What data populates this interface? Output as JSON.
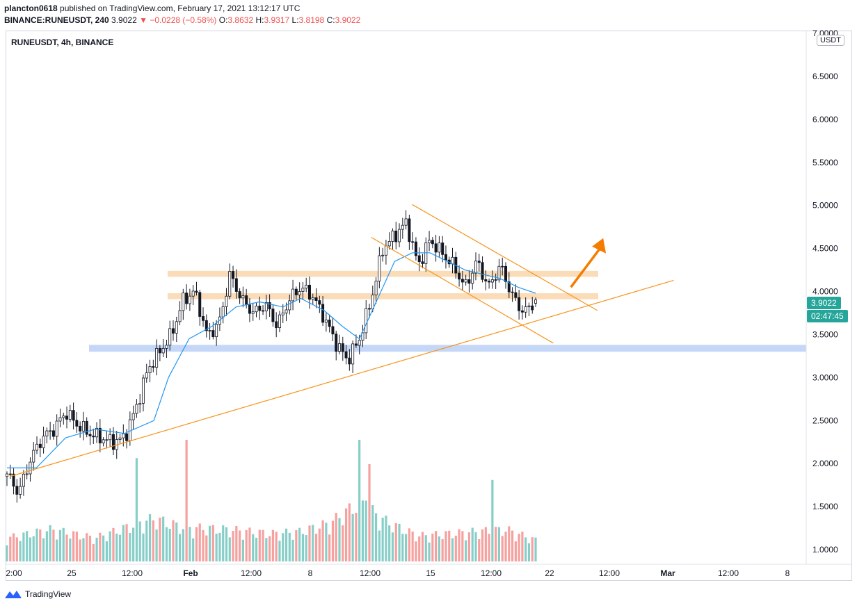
{
  "header": {
    "user": "plancton0618",
    "published": "published on TradingView.com, February 17, 2021 13:12:17 UTC",
    "symbol_interval": "BINANCE:RUNEUSDT, 240",
    "last": "3.9022",
    "change": "−0.0228 (−0.58%)",
    "o_label": "O:",
    "o": "3.8632",
    "h_label": "H:",
    "h": "3.9317",
    "l_label": "L:",
    "l": "3.8198",
    "c_label": "C:",
    "c": "3.9022"
  },
  "legend_title": "RUNEUSDT, 4h, BINANCE",
  "unit": "USDT",
  "price_badge": "3.9022",
  "countdown_badge": "02:47:45",
  "footer": {
    "brand": "TradingView"
  },
  "colors": {
    "up": "#26a69a",
    "down": "#ef5350",
    "candle": "#131722",
    "ma": "#2196f3",
    "trend": "#f7931a",
    "zone_orange": "#f9c48b",
    "zone_blue": "#9fbdf2",
    "arrow": "#f57c00"
  },
  "chart_data": {
    "type": "candlestick",
    "title": "RUNEUSDT, 4h, BINANCE",
    "y_axis": {
      "min": 0.9,
      "max": 7.0,
      "scale": "linear",
      "position": "right",
      "ticks": [
        "7.0000",
        "6.5000",
        "6.0000",
        "5.5000",
        "5.0000",
        "4.5000",
        "4.0000",
        "3.5000",
        "3.0000",
        "2.5000",
        "2.0000",
        "1.5000",
        "1.0000"
      ]
    },
    "x_axis": {
      "ticks": [
        "2:00",
        "25",
        "12:00",
        "Feb",
        "12:00",
        "8",
        "12:00",
        "15",
        "12:00",
        "22",
        "12:00",
        "Mar",
        "12:00",
        "8"
      ],
      "bold_ticks": [
        "Feb",
        "Mar"
      ]
    },
    "candles_per_day": 6,
    "num_candles": 160,
    "price_path": [
      [
        0,
        1.88
      ],
      [
        4,
        1.66
      ],
      [
        8,
        2.05
      ],
      [
        12,
        2.3
      ],
      [
        16,
        2.4
      ],
      [
        20,
        2.6
      ],
      [
        24,
        2.45
      ],
      [
        28,
        2.35
      ],
      [
        32,
        2.3
      ],
      [
        36,
        2.25
      ],
      [
        40,
        2.3
      ],
      [
        44,
        2.65
      ],
      [
        48,
        3.1
      ],
      [
        52,
        3.3
      ],
      [
        56,
        3.5
      ],
      [
        60,
        3.9
      ],
      [
        64,
        4.0
      ],
      [
        68,
        3.5
      ],
      [
        72,
        3.6
      ],
      [
        76,
        4.2
      ],
      [
        80,
        3.9
      ],
      [
        84,
        3.75
      ],
      [
        88,
        3.85
      ],
      [
        92,
        3.6
      ],
      [
        96,
        3.9
      ],
      [
        100,
        4.05
      ],
      [
        104,
        3.95
      ],
      [
        108,
        3.7
      ],
      [
        112,
        3.4
      ],
      [
        116,
        3.2
      ],
      [
        120,
        3.45
      ],
      [
        124,
        3.9
      ],
      [
        128,
        4.5
      ],
      [
        132,
        4.65
      ],
      [
        136,
        4.8
      ],
      [
        140,
        4.3
      ],
      [
        144,
        4.6
      ],
      [
        148,
        4.45
      ],
      [
        152,
        4.3
      ],
      [
        156,
        4.05
      ],
      [
        160,
        4.35
      ],
      [
        164,
        4.05
      ],
      [
        168,
        4.3
      ],
      [
        172,
        3.95
      ],
      [
        176,
        3.75
      ],
      [
        180,
        3.9
      ]
    ],
    "volume_shape": [
      [
        0,
        0.22
      ],
      [
        15,
        0.3
      ],
      [
        30,
        0.22
      ],
      [
        44,
        0.35
      ],
      [
        50,
        0.4
      ],
      [
        60,
        0.32
      ],
      [
        75,
        0.3
      ],
      [
        90,
        0.26
      ],
      [
        100,
        0.28
      ],
      [
        110,
        0.36
      ],
      [
        120,
        0.55
      ],
      [
        130,
        0.36
      ],
      [
        140,
        0.24
      ],
      [
        150,
        0.26
      ],
      [
        160,
        0.28
      ],
      [
        170,
        0.3
      ],
      [
        180,
        0.2
      ]
    ],
    "volume_spikes": [
      [
        44,
        0.85
      ],
      [
        61,
        1.0
      ],
      [
        120,
        1.0
      ],
      [
        122,
        0.5
      ],
      [
        123,
        0.8
      ],
      [
        165,
        0.67
      ]
    ],
    "last_candle": {
      "open": 3.8632,
      "high": 3.9317,
      "low": 3.8198,
      "close": 3.9022
    },
    "moving_average": [
      [
        0,
        1.95
      ],
      [
        10,
        1.95
      ],
      [
        20,
        2.3
      ],
      [
        30,
        2.4
      ],
      [
        40,
        2.35
      ],
      [
        50,
        2.5
      ],
      [
        55,
        3.0
      ],
      [
        62,
        3.45
      ],
      [
        70,
        3.6
      ],
      [
        78,
        3.82
      ],
      [
        86,
        3.88
      ],
      [
        94,
        3.82
      ],
      [
        100,
        3.92
      ],
      [
        108,
        3.78
      ],
      [
        114,
        3.6
      ],
      [
        120,
        3.45
      ],
      [
        126,
        3.9
      ],
      [
        132,
        4.35
      ],
      [
        138,
        4.45
      ],
      [
        144,
        4.45
      ],
      [
        150,
        4.35
      ],
      [
        156,
        4.25
      ],
      [
        162,
        4.2
      ],
      [
        168,
        4.15
      ],
      [
        174,
        4.05
      ],
      [
        180,
        3.98
      ]
    ],
    "drawings": {
      "rising_trendline": [
        [
          1,
          1.85
        ],
        [
          227,
          4.13
        ]
      ],
      "channel_upper": [
        [
          138,
          5.01
        ],
        [
          201,
          3.78
        ]
      ],
      "channel_lower": [
        [
          124,
          4.63
        ],
        [
          186,
          3.4
        ]
      ],
      "resistance_zone_1": [
        4.17,
        4.24
      ],
      "resistance_zone_2": [
        3.91,
        3.98
      ],
      "support_zone": [
        3.3,
        3.38
      ],
      "arrow": {
        "from": [
          192,
          4.05
        ],
        "to": [
          203,
          4.62
        ]
      }
    }
  }
}
